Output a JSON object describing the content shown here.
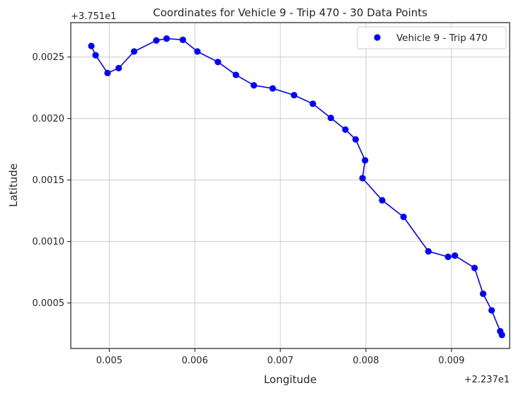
{
  "chart_data": {
    "type": "scatter",
    "title": "Coordinates for Vehicle 9 - Trip 470 - 30 Data Points",
    "xlabel": "Longitude",
    "ylabel": "Latitude",
    "x_offset_label": "+2.237e1",
    "y_offset_label": "+3.751e1",
    "xlim": [
      0.00455,
      0.00968
    ],
    "ylim": [
      0.00013,
      0.00278
    ],
    "x_ticks": [
      0.005,
      0.006,
      0.007,
      0.008,
      0.009
    ],
    "x_tick_labels": [
      "0.005",
      "0.006",
      "0.007",
      "0.008",
      "0.009"
    ],
    "y_ticks": [
      0.0005,
      0.001,
      0.0015,
      0.002,
      0.0025
    ],
    "y_tick_labels": [
      "0.0005",
      "0.0010",
      "0.0015",
      "0.0020",
      "0.0025"
    ],
    "grid": true,
    "legend_position": "top-right",
    "series": [
      {
        "name": "Vehicle 9 - Trip 470",
        "color": "#0000ff",
        "x": [
          0.00479,
          0.00484,
          0.00498,
          0.00511,
          0.00529,
          0.00555,
          0.00567,
          0.00586,
          0.00603,
          0.00627,
          0.00648,
          0.00669,
          0.00691,
          0.00716,
          0.00738,
          0.00759,
          0.00776,
          0.00788,
          0.00799,
          0.00796,
          0.00819,
          0.00844,
          0.00873,
          0.00896,
          0.00904,
          0.00927,
          0.00937,
          0.00947,
          0.00957,
          0.00959
        ],
        "y": [
          0.00259,
          0.002515,
          0.00237,
          0.00241,
          0.002545,
          0.002635,
          0.00265,
          0.00264,
          0.002545,
          0.00246,
          0.002355,
          0.00227,
          0.002245,
          0.00219,
          0.00212,
          0.002005,
          0.00191,
          0.00183,
          0.00166,
          0.001515,
          0.001335,
          0.0012,
          0.00092,
          0.000875,
          0.000885,
          0.000785,
          0.000575,
          0.00044,
          0.00027,
          0.00024
        ]
      }
    ]
  }
}
